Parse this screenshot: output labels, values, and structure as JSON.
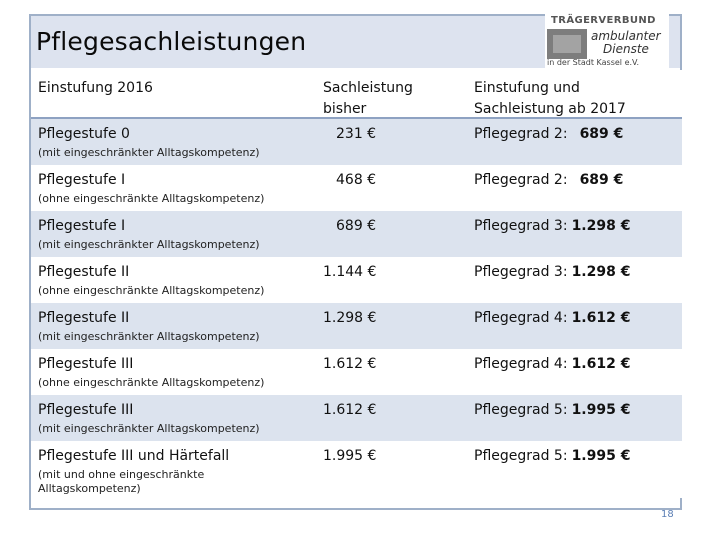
{
  "slide": {
    "title": "Pflegesachleistungen",
    "page_number": "18"
  },
  "logo": {
    "top_text": "TRÄGERVERBUND",
    "word1": "ambulanter",
    "word2": "Dienste",
    "bottom_text": "in der Stadt Kassel e.V."
  },
  "table": {
    "headers": {
      "col1": "Einstufung 2016",
      "col2_line1": "Sachleistung",
      "col2_line2": "bisher",
      "col3_line1": "Einstufung und",
      "col3_line2": "Sachleistung ab 2017"
    },
    "rows": [
      {
        "stufe": "Pflegestufe 0",
        "sub": "(mit eingeschränkter Alltagskompetenz)",
        "sub2": "",
        "bisher": "231 €",
        "grad_label": "Pflegegrad 2:",
        "grad_value": "689 €"
      },
      {
        "stufe": "Pflegestufe I",
        "sub": "(ohne eingeschränkte Alltagskompetenz)",
        "sub2": "",
        "bisher": "468 €",
        "grad_label": "Pflegegrad 2:",
        "grad_value": "689 €"
      },
      {
        "stufe": "Pflegestufe I",
        "sub": "(mit eingeschränkter Alltagskompetenz)",
        "sub2": "",
        "bisher": "689 €",
        "grad_label": "Pflegegrad 3:",
        "grad_value": "1.298 €"
      },
      {
        "stufe": "Pflegestufe II",
        "sub": "(ohne eingeschränkte Alltagskompetenz)",
        "sub2": "",
        "bisher": "1.144 €",
        "grad_label": "Pflegegrad 3:",
        "grad_value": "1.298 €"
      },
      {
        "stufe": "Pflegestufe II",
        "sub": "(mit eingeschränkter Alltagskompetenz)",
        "sub2": "",
        "bisher": "1.298 €",
        "grad_label": "Pflegegrad 4:",
        "grad_value": "1.612 €"
      },
      {
        "stufe": "Pflegestufe III",
        "sub": "(ohne eingeschränkte Alltagskompetenz)",
        "sub2": "",
        "bisher": "1.612 €",
        "grad_label": "Pflegegrad 4:",
        "grad_value": "1.612 €"
      },
      {
        "stufe": "Pflegestufe III",
        "sub": "(mit eingeschränkter Alltagskompetenz)",
        "sub2": "",
        "bisher": "1.612 €",
        "grad_label": "Pflegegrad 5:",
        "grad_value": "1.995 €"
      },
      {
        "stufe": "Pflegestufe III und Härtefall",
        "sub": "(mit und ohne eingeschränkte",
        "sub2": "Alltagskompetenz)",
        "bisher": "1.995 €",
        "grad_label": "Pflegegrad 5:",
        "grad_value": "1.995 €"
      }
    ]
  },
  "colors": {
    "title_bar": "#dde3ef",
    "row_band": "#dce3ee",
    "frame": "#9fb0c8",
    "page_number": "#5b7fb5"
  }
}
